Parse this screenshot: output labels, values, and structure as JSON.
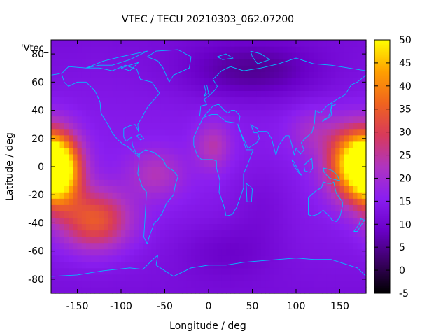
{
  "chart_data": {
    "type": "heatmap",
    "title": "VTEC / TECU 20210303_062.07200",
    "xlabel": "Longitude / deg",
    "ylabel": "Latitude / deg",
    "xlim": [
      -180,
      180
    ],
    "ylim": [
      -90,
      90
    ],
    "xticks": [
      -150,
      -100,
      -50,
      0,
      50,
      100,
      150
    ],
    "yticks": [
      -80,
      -60,
      -40,
      -20,
      0,
      20,
      40,
      60,
      80
    ],
    "colorbar": {
      "range": [
        -5,
        50
      ],
      "ticks": [
        -5,
        0,
        5,
        10,
        15,
        20,
        25,
        30,
        35,
        40,
        45,
        50
      ]
    },
    "series_key": "'Vtec_",
    "grid": false,
    "colors": {
      "land_outline": "#00bfff",
      "palette": [
        "#000000",
        "#3b0064",
        "#6a00c8",
        "#8a1ef0",
        "#b034c0",
        "#d83a5a",
        "#f0641e",
        "#ffa000",
        "#ffff00"
      ]
    },
    "features": [
      {
        "name": "pacific-anomaly",
        "lon": -170,
        "lat": -5,
        "value": 47
      },
      {
        "name": "west-pacific-anomaly",
        "lon": 165,
        "lat": 0,
        "value": 46
      },
      {
        "name": "south-pacific-band",
        "lon": -120,
        "lat": -40,
        "value": 30
      },
      {
        "name": "africa-spot",
        "lon": 0,
        "lat": 15,
        "value": 22
      },
      {
        "name": "south-america-tail",
        "lon": -50,
        "lat": -5,
        "value": 25
      },
      {
        "name": "north-atlantic-low",
        "lon": 50,
        "lat": 65,
        "value": 4
      }
    ]
  }
}
